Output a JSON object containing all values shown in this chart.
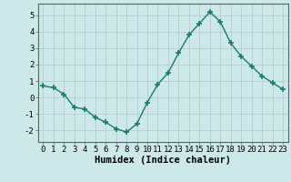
{
  "x": [
    0,
    1,
    2,
    3,
    4,
    5,
    6,
    7,
    8,
    9,
    10,
    11,
    12,
    13,
    14,
    15,
    16,
    17,
    18,
    19,
    20,
    21,
    22,
    23
  ],
  "y": [
    0.7,
    0.6,
    0.2,
    -0.6,
    -0.7,
    -1.2,
    -1.5,
    -1.9,
    -2.1,
    -1.6,
    -0.3,
    0.8,
    1.5,
    2.7,
    3.8,
    4.5,
    5.2,
    4.6,
    3.3,
    2.5,
    1.9,
    1.3,
    0.9,
    0.5
  ],
  "line_color": "#1a7a6e",
  "marker": "+",
  "marker_size": 5,
  "bg_color": "#cde8e8",
  "grid_color": "#b8cccc",
  "xlabel": "Humidex (Indice chaleur)",
  "ylim": [
    -2.7,
    5.7
  ],
  "xlim": [
    -0.5,
    23.5
  ],
  "yticks": [
    -2,
    -1,
    0,
    1,
    2,
    3,
    4,
    5
  ],
  "xticks": [
    0,
    1,
    2,
    3,
    4,
    5,
    6,
    7,
    8,
    9,
    10,
    11,
    12,
    13,
    14,
    15,
    16,
    17,
    18,
    19,
    20,
    21,
    22,
    23
  ],
  "tick_label_fontsize": 6.5,
  "xlabel_fontsize": 7.5
}
